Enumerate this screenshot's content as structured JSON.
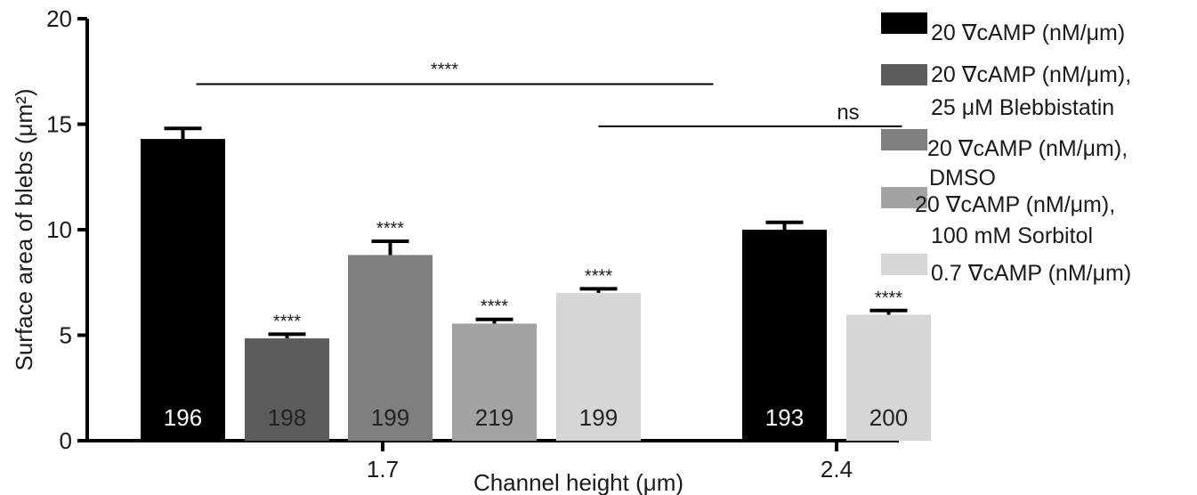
{
  "chart_data": {
    "type": "bar",
    "xlabel": "Channel height (μm)",
    "ylabel": "Surface area of blebs (μm²)",
    "ylim": [
      0,
      20
    ],
    "yticks": [
      "0",
      "5",
      "10",
      "15",
      "20"
    ],
    "groups": [
      {
        "label": "1.7",
        "bars": [
          {
            "series": 0,
            "value": 14.3,
            "error": 0.5,
            "n": "196",
            "sig": ""
          },
          {
            "series": 1,
            "value": 4.85,
            "error": 0.2,
            "n": "198",
            "sig": "****"
          },
          {
            "series": 2,
            "value": 8.8,
            "error": 0.65,
            "n": "199",
            "sig": "****"
          },
          {
            "series": 3,
            "value": 5.55,
            "error": 0.2,
            "n": "219",
            "sig": "****"
          },
          {
            "series": 4,
            "value": 7.0,
            "error": 0.2,
            "n": "199",
            "sig": "****"
          }
        ]
      },
      {
        "label": "2.4",
        "bars": [
          {
            "series": 0,
            "value": 10.0,
            "error": 0.35,
            "n": "193",
            "sig": ""
          },
          {
            "series": 4,
            "value": 5.97,
            "error": 0.2,
            "n": "200",
            "sig": "****"
          }
        ]
      }
    ],
    "series": [
      {
        "name": "20 ∇cAMP (nM/μm)",
        "color": "#000000"
      },
      {
        "name": "20 ∇cAMP (nM/μm),\n25 μM Blebbistatin",
        "color": "#5a5c5e"
      },
      {
        "name": "20 ∇cAMP (nM/μm),\nDMSO",
        "color": "#7f7f7f"
      },
      {
        "name": "20 ∇cAMP (nM/μm),\n100 mM Sorbitol",
        "color": "#a3a3a6"
      },
      {
        "name": "0.7 ∇cAMP (nM/μm)",
        "color": "#d6d6d6"
      }
    ],
    "annotations": [
      {
        "text": "****",
        "from_bar": [
          0,
          0
        ],
        "to_bar": [
          1,
          0
        ],
        "y": 16.9
      },
      {
        "text": "ns",
        "from_bar": [
          0,
          4
        ],
        "to_bar": [
          1,
          1
        ],
        "y": 14.9
      }
    ],
    "legend_position": "right"
  }
}
